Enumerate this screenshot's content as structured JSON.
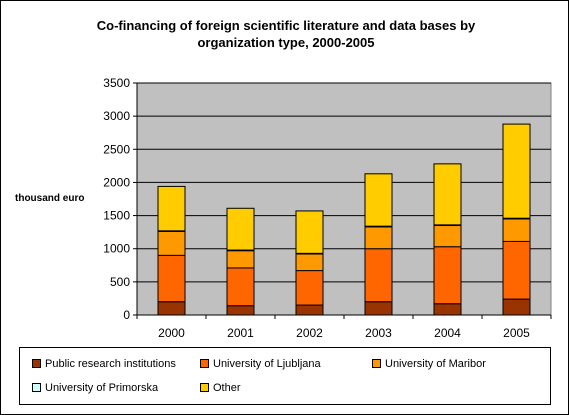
{
  "chart_data": {
    "type": "bar",
    "stacked": true,
    "title": "Co-financing of foreign scientific literature and data bases by\norganization type, 2000-2005",
    "xlabel": "",
    "ylabel": "thousand euro",
    "ylim": [
      0,
      3500
    ],
    "yticks": [
      "0",
      "500",
      "1000",
      "1500",
      "2000",
      "2500",
      "3000",
      "3500"
    ],
    "grid": true,
    "legend_position": "bottom",
    "plot_background": "#C0C0C0",
    "categories": [
      "2000",
      "2001",
      "2002",
      "2003",
      "2004",
      "2005"
    ],
    "series": [
      {
        "name": "Public research institutions",
        "color": "#993300",
        "values": [
          200,
          140,
          150,
          200,
          170,
          240
        ]
      },
      {
        "name": "University of Ljubljana",
        "color": "#FF6600",
        "values": [
          700,
          570,
          520,
          800,
          860,
          870
        ]
      },
      {
        "name": "University of Maribor",
        "color": "#FF9900",
        "values": [
          360,
          260,
          250,
          330,
          320,
          340
        ]
      },
      {
        "name": "University of Primorska",
        "color": "#CCFFFF",
        "values": [
          10,
          10,
          10,
          10,
          10,
          10
        ]
      },
      {
        "name": "Other",
        "color": "#FFCC00",
        "values": [
          670,
          630,
          640,
          790,
          920,
          1420
        ]
      }
    ]
  }
}
